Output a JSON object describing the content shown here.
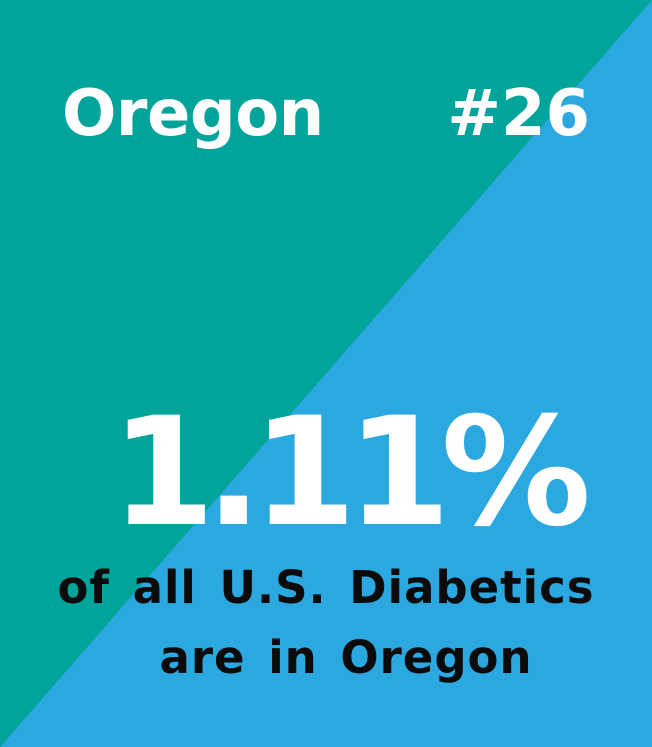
{
  "colors": {
    "teal": "#00a49b",
    "blue": "#2ba8e0",
    "text_light": "#ffffff",
    "text_dark": "#0b0b0b"
  },
  "header": {
    "state": "Oregon",
    "rank": "#26"
  },
  "stat": {
    "value": "1.11%"
  },
  "caption": {
    "line1": "of all U.S. Diabetics",
    "line2": "are in Oregon"
  }
}
